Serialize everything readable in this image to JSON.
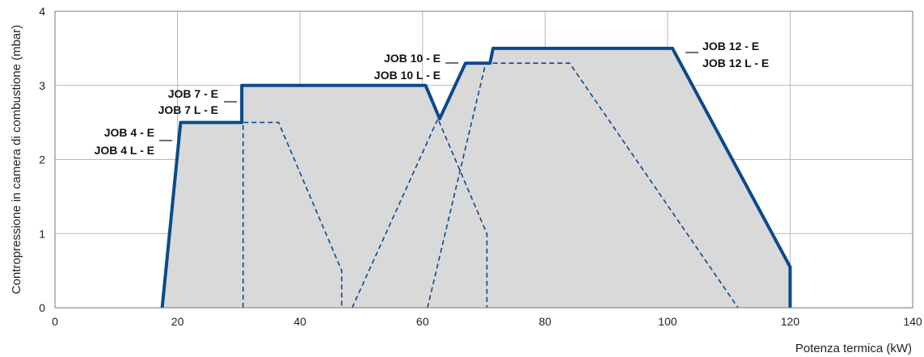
{
  "chart_data": {
    "type": "area",
    "xlabel": "Potenza termica (kW)",
    "ylabel": "Contropressione in camera di combustione (mbar)",
    "xlim": [
      0,
      140
    ],
    "ylim": [
      0,
      4
    ],
    "x_ticks": [
      "0",
      "20",
      "40",
      "60",
      "80",
      "100",
      "120",
      "140"
    ],
    "y_ticks": [
      "0",
      "1",
      "2",
      "3",
      "4"
    ],
    "grid": true,
    "colors": {
      "envelope": "#0b4a8b",
      "area": "#d9d9d9",
      "dashed": "#0b4a8b",
      "grid": "#b8b8b8"
    },
    "envelope": {
      "x": [
        17.5,
        20.5,
        30.5,
        30.5,
        60.5,
        62.8,
        67,
        71,
        71.5,
        100.8,
        120,
        120
      ],
      "y": [
        0,
        2.5,
        2.5,
        3,
        3,
        2.55,
        3.3,
        3.3,
        3.5,
        3.5,
        0.55,
        0
      ]
    },
    "dashed_series": [
      {
        "x": [
          30.7,
          30.7,
          36.5,
          46.8,
          46.8
        ],
        "y": [
          0,
          2.5,
          2.5,
          0.5,
          0
        ]
      },
      {
        "x": [
          48.5,
          62.5,
          70.5,
          70.5
        ],
        "y": [
          0,
          2.55,
          1.0,
          0
        ]
      },
      {
        "x": [
          60.8,
          70.3,
          84,
          111.5
        ],
        "y": [
          0,
          3.3,
          3.3,
          0
        ]
      }
    ],
    "series_labels": [
      {
        "lines": [
          "JOB 4 - E",
          "JOB 4 L - E"
        ]
      },
      {
        "lines": [
          "JOB 7 - E",
          "JOB 7 L - E"
        ]
      },
      {
        "lines": [
          "JOB 10 - E",
          "JOB 10 L - E"
        ]
      },
      {
        "lines": [
          "JOB 12 - E",
          "JOB 12 L - E"
        ]
      }
    ]
  }
}
